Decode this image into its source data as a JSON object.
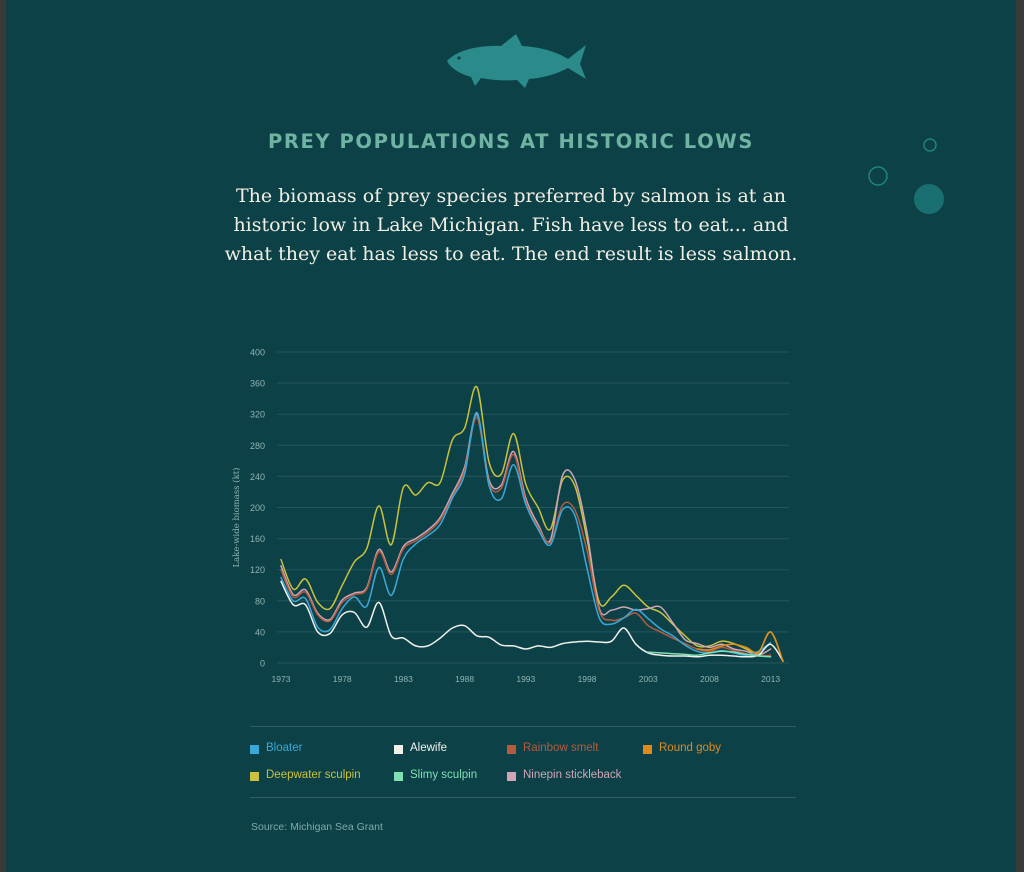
{
  "header": {
    "title": "PREY POPULATIONS AT HISTORIC LOWS",
    "subtitle": "The biomass of prey species preferred by salmon is at an historic low in Lake Michigan. Fish have less to eat... and what they eat has less to eat. The end result is less salmon."
  },
  "source": "Source: Michigan Sea Grant",
  "icons": {
    "fish": "salmon-fish-icon",
    "bubbles": "bubble-circles"
  },
  "colors": {
    "background": "#0d4148",
    "title": "#6fb3a3",
    "grid": "#24575c",
    "axis_text": "#8fb5b3"
  },
  "chart_data": {
    "type": "line",
    "title": "",
    "xlabel": "",
    "ylabel": "Lake-wide biomass (kt)",
    "xlim": [
      1973,
      2014.5
    ],
    "ylim": [
      0,
      400
    ],
    "xticks": [
      "1973",
      "1978",
      "1983",
      "1988",
      "1993",
      "1998",
      "2003",
      "2008",
      "2013"
    ],
    "yticks": [
      "0",
      "40",
      "80",
      "120",
      "160",
      "200",
      "240",
      "280",
      "320",
      "360",
      "400"
    ],
    "grid": true,
    "legend_position": "bottom",
    "series": [
      {
        "name": "Deepwater sculpin",
        "color": "#c9c23a",
        "x": [
          1973,
          1974,
          1975,
          1976,
          1977,
          1978,
          1979,
          1980,
          1981,
          1982,
          1983,
          1984,
          1985,
          1986,
          1987,
          1988,
          1989,
          1990,
          1991,
          1992,
          1993,
          1994,
          1995,
          1996,
          1997,
          1998,
          1999,
          2000,
          2001,
          2002,
          2003,
          2004,
          2005,
          2006,
          2007,
          2008,
          2009,
          2010,
          2011,
          2012,
          2013,
          2014
        ],
        "y": [
          133,
          95,
          108,
          78,
          70,
          100,
          130,
          147,
          202,
          152,
          226,
          216,
          232,
          232,
          287,
          302,
          355,
          258,
          243,
          295,
          230,
          200,
          172,
          235,
          228,
          160,
          78,
          85,
          100,
          87,
          72,
          65,
          50,
          35,
          22,
          22,
          28,
          25,
          18,
          13,
          40,
          2
        ]
      },
      {
        "name": "Ninepin stickleback",
        "color": "#cfa6b6",
        "x": [
          1973,
          1974,
          1975,
          1976,
          1977,
          1978,
          1979,
          1980,
          1981,
          1982,
          1983,
          1984,
          1985,
          1986,
          1987,
          1988,
          1989,
          1990,
          1991,
          1992,
          1993,
          1994,
          1995,
          1996,
          1997,
          1998,
          1999,
          2000,
          2001,
          2002,
          2003,
          2004,
          2005,
          2006,
          2007,
          2008,
          2009,
          2010,
          2011,
          2012,
          2013
        ],
        "y": [
          125,
          88,
          94,
          64,
          56,
          81,
          90,
          97,
          146,
          117,
          150,
          160,
          171,
          187,
          218,
          252,
          320,
          235,
          229,
          272,
          212,
          178,
          158,
          241,
          236,
          168,
          70,
          68,
          72,
          68,
          70,
          72,
          52,
          30,
          25,
          20,
          24,
          18,
          15,
          10,
          18
        ]
      },
      {
        "name": "Rainbow smelt",
        "color": "#b85a3e",
        "x": [
          1973,
          1974,
          1975,
          1976,
          1977,
          1978,
          1979,
          1980,
          1981,
          1982,
          1983,
          1984,
          1985,
          1986,
          1987,
          1988,
          1989,
          1990,
          1991,
          1992,
          1993,
          1994,
          1995,
          1996,
          1997,
          1998,
          1999,
          2000,
          2001,
          2002,
          2003,
          2004,
          2005,
          2006,
          2007,
          2008,
          2009,
          2010,
          2011,
          2012,
          2013
        ],
        "y": [
          120,
          85,
          91,
          62,
          54,
          78,
          88,
          95,
          143,
          114,
          147,
          157,
          168,
          184,
          214,
          248,
          316,
          231,
          225,
          268,
          208,
          175,
          155,
          203,
          197,
          145,
          67,
          55,
          58,
          64,
          48,
          40,
          32,
          25,
          18,
          15,
          20,
          16,
          12,
          9,
          10
        ]
      },
      {
        "name": "Bloater",
        "color": "#3aa9d9",
        "x": [
          1973,
          1974,
          1975,
          1976,
          1977,
          1978,
          1979,
          1980,
          1981,
          1982,
          1983,
          1984,
          1985,
          1986,
          1987,
          1988,
          1989,
          1990,
          1991,
          1992,
          1993,
          1994,
          1995,
          1996,
          1997,
          1998,
          1999,
          2000,
          2001,
          2002,
          2003,
          2004,
          2005,
          2006,
          2007,
          2008,
          2009,
          2010,
          2011,
          2012,
          2013
        ],
        "y": [
          110,
          80,
          83,
          46,
          43,
          70,
          85,
          73,
          123,
          87,
          134,
          153,
          164,
          178,
          212,
          243,
          322,
          228,
          211,
          255,
          204,
          172,
          152,
          197,
          190,
          122,
          58,
          50,
          58,
          69,
          57,
          44,
          35,
          23,
          15,
          13,
          16,
          13,
          10,
          15,
          26
        ]
      },
      {
        "name": "Alewife",
        "color": "#f1f1ec",
        "x": [
          1973,
          1974,
          1975,
          1976,
          1977,
          1978,
          1979,
          1980,
          1981,
          1982,
          1983,
          1984,
          1985,
          1986,
          1987,
          1988,
          1989,
          1990,
          1991,
          1992,
          1993,
          1994,
          1995,
          1996,
          1997,
          1998,
          1999,
          2000,
          2001,
          2002,
          2003,
          2004,
          2005,
          2006,
          2007,
          2008,
          2009,
          2010,
          2011,
          2012,
          2013,
          2014
        ],
        "y": [
          105,
          75,
          75,
          40,
          38,
          62,
          65,
          46,
          78,
          35,
          32,
          22,
          22,
          32,
          45,
          48,
          35,
          33,
          23,
          22,
          18,
          22,
          20,
          25,
          27,
          28,
          27,
          28,
          45,
          24,
          13,
          10,
          9,
          9,
          8,
          10,
          10,
          9,
          8,
          10,
          24,
          3
        ]
      },
      {
        "name": "Slimy sculpin",
        "color": "#7fe0b3",
        "x": [
          2003,
          2004,
          2005,
          2006,
          2007,
          2008,
          2009,
          2010,
          2011,
          2012,
          2013
        ],
        "y": [
          14,
          13,
          12,
          11,
          10,
          13,
          15,
          14,
          11,
          9,
          8
        ]
      },
      {
        "name": "Round goby",
        "color": "#e08a1c",
        "x": [
          2007,
          2008,
          2009,
          2010,
          2011,
          2012,
          2013,
          2014
        ],
        "y": [
          18,
          17,
          22,
          24,
          20,
          14,
          40,
          3
        ]
      }
    ]
  }
}
